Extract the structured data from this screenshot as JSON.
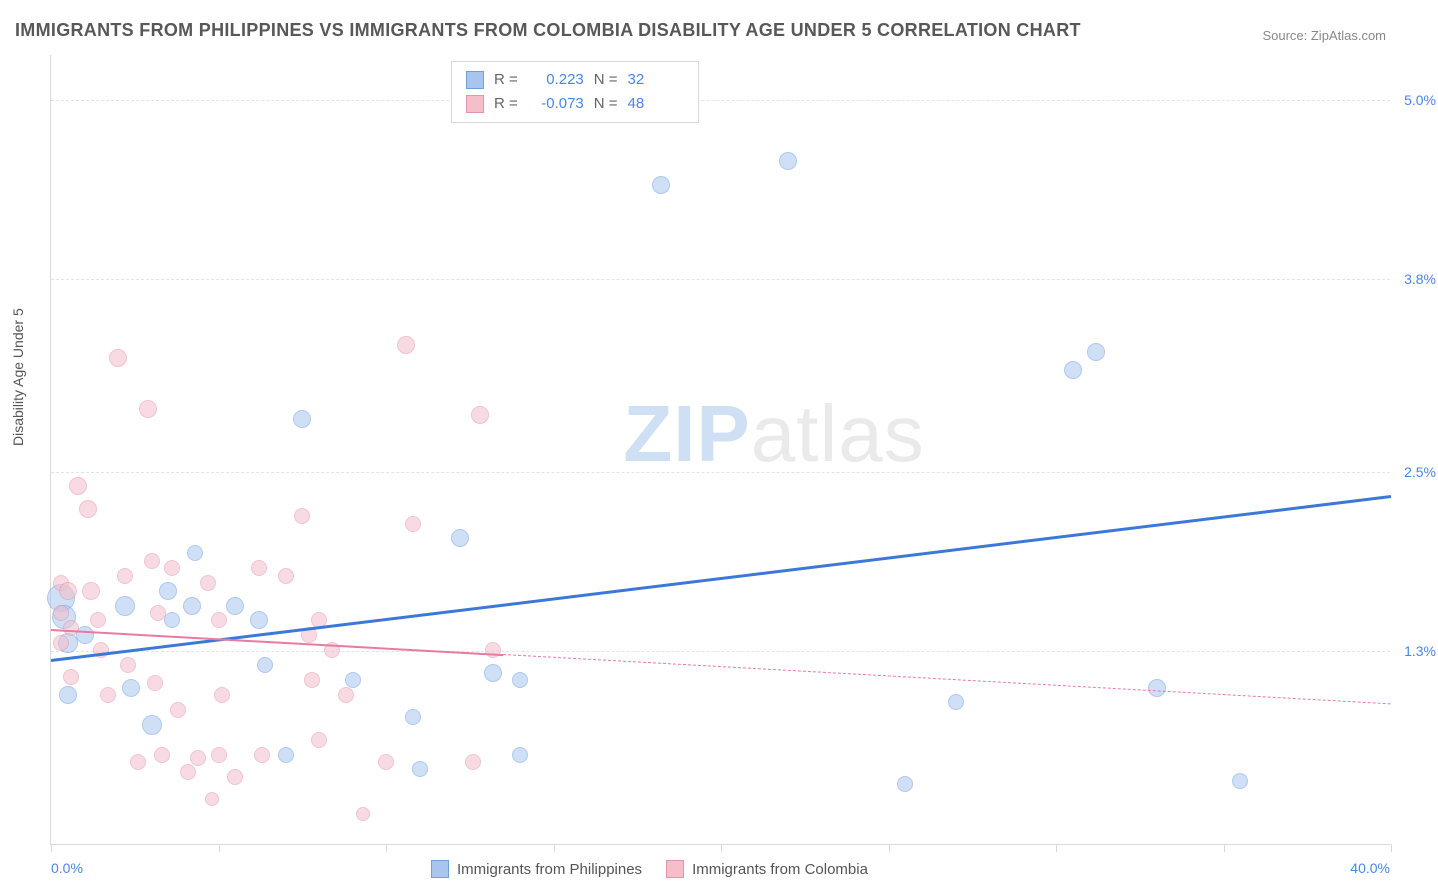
{
  "title": "IMMIGRANTS FROM PHILIPPINES VS IMMIGRANTS FROM COLOMBIA DISABILITY AGE UNDER 5 CORRELATION CHART",
  "source": "Source: ZipAtlas.com",
  "watermark": {
    "zip": "ZIP",
    "atlas": "atlas"
  },
  "chart": {
    "type": "scatter",
    "background_color": "#ffffff",
    "grid_color": "#e4e4e4",
    "axis_color": "#d9d9d9",
    "ylabel": "Disability Age Under 5",
    "ylabel_color": "#555555",
    "ylabel_fontsize": 14,
    "xlim": [
      0.0,
      40.0
    ],
    "ylim": [
      0.0,
      5.3
    ],
    "xtick_values": [
      0,
      5,
      10,
      15,
      20,
      25,
      30,
      35,
      40
    ],
    "xaxis_min_label": "0.0%",
    "xaxis_max_label": "40.0%",
    "yticks": [
      {
        "value": 1.3,
        "label": "1.3%"
      },
      {
        "value": 2.5,
        "label": "2.5%"
      },
      {
        "value": 3.8,
        "label": "3.8%"
      },
      {
        "value": 5.0,
        "label": "5.0%"
      }
    ],
    "tick_label_color": "#4a86e8",
    "tick_label_fontsize": 14,
    "point_radius_range": [
      7,
      14
    ],
    "point_opacity": 0.55,
    "series": [
      {
        "key": "philippines",
        "label": "Immigrants from Philippines",
        "fill_color": "#a9c5ee",
        "stroke_color": "#6d9fe2",
        "r_value": "0.223",
        "n_value": "32",
        "trend": {
          "x1": 0,
          "y1": 1.25,
          "x2": 40,
          "y2": 2.35,
          "solid_until_x": 40,
          "line_width": 3,
          "line_color": "#3b78d8"
        },
        "points": [
          {
            "x": 0.3,
            "y": 1.65,
            "r": 14
          },
          {
            "x": 0.4,
            "y": 1.52,
            "r": 12
          },
          {
            "x": 0.5,
            "y": 1.35,
            "r": 10
          },
          {
            "x": 0.5,
            "y": 1.0,
            "r": 9
          },
          {
            "x": 1.0,
            "y": 1.4,
            "r": 9
          },
          {
            "x": 2.2,
            "y": 1.6,
            "r": 10
          },
          {
            "x": 2.4,
            "y": 1.05,
            "r": 9
          },
          {
            "x": 3.0,
            "y": 0.8,
            "r": 10
          },
          {
            "x": 3.5,
            "y": 1.7,
            "r": 9
          },
          {
            "x": 3.6,
            "y": 1.5,
            "r": 8
          },
          {
            "x": 4.2,
            "y": 1.6,
            "r": 9
          },
          {
            "x": 4.3,
            "y": 1.95,
            "r": 8
          },
          {
            "x": 5.5,
            "y": 1.6,
            "r": 9
          },
          {
            "x": 6.2,
            "y": 1.5,
            "r": 9
          },
          {
            "x": 6.4,
            "y": 1.2,
            "r": 8
          },
          {
            "x": 7.5,
            "y": 2.85,
            "r": 9
          },
          {
            "x": 7.0,
            "y": 0.6,
            "r": 8
          },
          {
            "x": 9.0,
            "y": 1.1,
            "r": 8
          },
          {
            "x": 10.8,
            "y": 0.85,
            "r": 8
          },
          {
            "x": 11.0,
            "y": 0.5,
            "r": 8
          },
          {
            "x": 12.2,
            "y": 2.05,
            "r": 9
          },
          {
            "x": 13.2,
            "y": 1.15,
            "r": 9
          },
          {
            "x": 14.0,
            "y": 1.1,
            "r": 8
          },
          {
            "x": 14.0,
            "y": 0.6,
            "r": 8
          },
          {
            "x": 18.2,
            "y": 4.42,
            "r": 9
          },
          {
            "x": 22.0,
            "y": 4.58,
            "r": 9
          },
          {
            "x": 25.5,
            "y": 0.4,
            "r": 8
          },
          {
            "x": 27.0,
            "y": 0.95,
            "r": 8
          },
          {
            "x": 30.5,
            "y": 3.18,
            "r": 9
          },
          {
            "x": 31.2,
            "y": 3.3,
            "r": 9
          },
          {
            "x": 33.0,
            "y": 1.05,
            "r": 9
          },
          {
            "x": 35.5,
            "y": 0.42,
            "r": 8
          }
        ]
      },
      {
        "key": "colombia",
        "label": "Immigrants from Colombia",
        "fill_color": "#f4bfcb",
        "stroke_color": "#e495a9",
        "r_value": "-0.073",
        "n_value": "48",
        "trend": {
          "x1": 0,
          "y1": 1.45,
          "x2": 40,
          "y2": 0.95,
          "solid_until_x": 13.5,
          "line_width": 2,
          "line_color": "#e87ba0"
        },
        "points": [
          {
            "x": 0.3,
            "y": 1.75,
            "r": 8
          },
          {
            "x": 0.3,
            "y": 1.55,
            "r": 8
          },
          {
            "x": 0.3,
            "y": 1.35,
            "r": 8
          },
          {
            "x": 0.5,
            "y": 1.7,
            "r": 9
          },
          {
            "x": 0.6,
            "y": 1.12,
            "r": 8
          },
          {
            "x": 0.6,
            "y": 1.45,
            "r": 8
          },
          {
            "x": 0.8,
            "y": 2.4,
            "r": 9
          },
          {
            "x": 1.1,
            "y": 2.25,
            "r": 9
          },
          {
            "x": 1.2,
            "y": 1.7,
            "r": 9
          },
          {
            "x": 1.4,
            "y": 1.5,
            "r": 8
          },
          {
            "x": 1.5,
            "y": 1.3,
            "r": 8
          },
          {
            "x": 1.7,
            "y": 1.0,
            "r": 8
          },
          {
            "x": 2.0,
            "y": 3.26,
            "r": 9
          },
          {
            "x": 2.2,
            "y": 1.8,
            "r": 8
          },
          {
            "x": 2.3,
            "y": 1.2,
            "r": 8
          },
          {
            "x": 2.6,
            "y": 0.55,
            "r": 8
          },
          {
            "x": 2.9,
            "y": 2.92,
            "r": 9
          },
          {
            "x": 3.0,
            "y": 1.9,
            "r": 8
          },
          {
            "x": 3.1,
            "y": 1.08,
            "r": 8
          },
          {
            "x": 3.2,
            "y": 1.55,
            "r": 8
          },
          {
            "x": 3.3,
            "y": 0.6,
            "r": 8
          },
          {
            "x": 3.6,
            "y": 1.85,
            "r": 8
          },
          {
            "x": 3.8,
            "y": 0.9,
            "r": 8
          },
          {
            "x": 4.1,
            "y": 0.48,
            "r": 8
          },
          {
            "x": 4.4,
            "y": 0.58,
            "r": 8
          },
          {
            "x": 4.7,
            "y": 1.75,
            "r": 8
          },
          {
            "x": 4.8,
            "y": 0.3,
            "r": 7
          },
          {
            "x": 5.0,
            "y": 1.5,
            "r": 8
          },
          {
            "x": 5.0,
            "y": 0.6,
            "r": 8
          },
          {
            "x": 5.1,
            "y": 1.0,
            "r": 8
          },
          {
            "x": 5.5,
            "y": 0.45,
            "r": 8
          },
          {
            "x": 6.2,
            "y": 1.85,
            "r": 8
          },
          {
            "x": 6.3,
            "y": 0.6,
            "r": 8
          },
          {
            "x": 7.0,
            "y": 1.8,
            "r": 8
          },
          {
            "x": 7.5,
            "y": 2.2,
            "r": 8
          },
          {
            "x": 7.7,
            "y": 1.4,
            "r": 8
          },
          {
            "x": 7.8,
            "y": 1.1,
            "r": 8
          },
          {
            "x": 8.0,
            "y": 1.5,
            "r": 8
          },
          {
            "x": 8.0,
            "y": 0.7,
            "r": 8
          },
          {
            "x": 8.4,
            "y": 1.3,
            "r": 8
          },
          {
            "x": 8.8,
            "y": 1.0,
            "r": 8
          },
          {
            "x": 9.3,
            "y": 0.2,
            "r": 7
          },
          {
            "x": 10.0,
            "y": 0.55,
            "r": 8
          },
          {
            "x": 10.6,
            "y": 3.35,
            "r": 9
          },
          {
            "x": 10.8,
            "y": 2.15,
            "r": 8
          },
          {
            "x": 12.8,
            "y": 2.88,
            "r": 9
          },
          {
            "x": 12.6,
            "y": 0.55,
            "r": 8
          },
          {
            "x": 13.2,
            "y": 1.3,
            "r": 8
          }
        ]
      }
    ],
    "corr_legend": {
      "r_label": "R =",
      "n_label": "N =",
      "label_color": "#666666",
      "value_color": "#4a86e8",
      "border_color": "#d9d9d9"
    },
    "bottom_legend_fontsize": 15
  }
}
